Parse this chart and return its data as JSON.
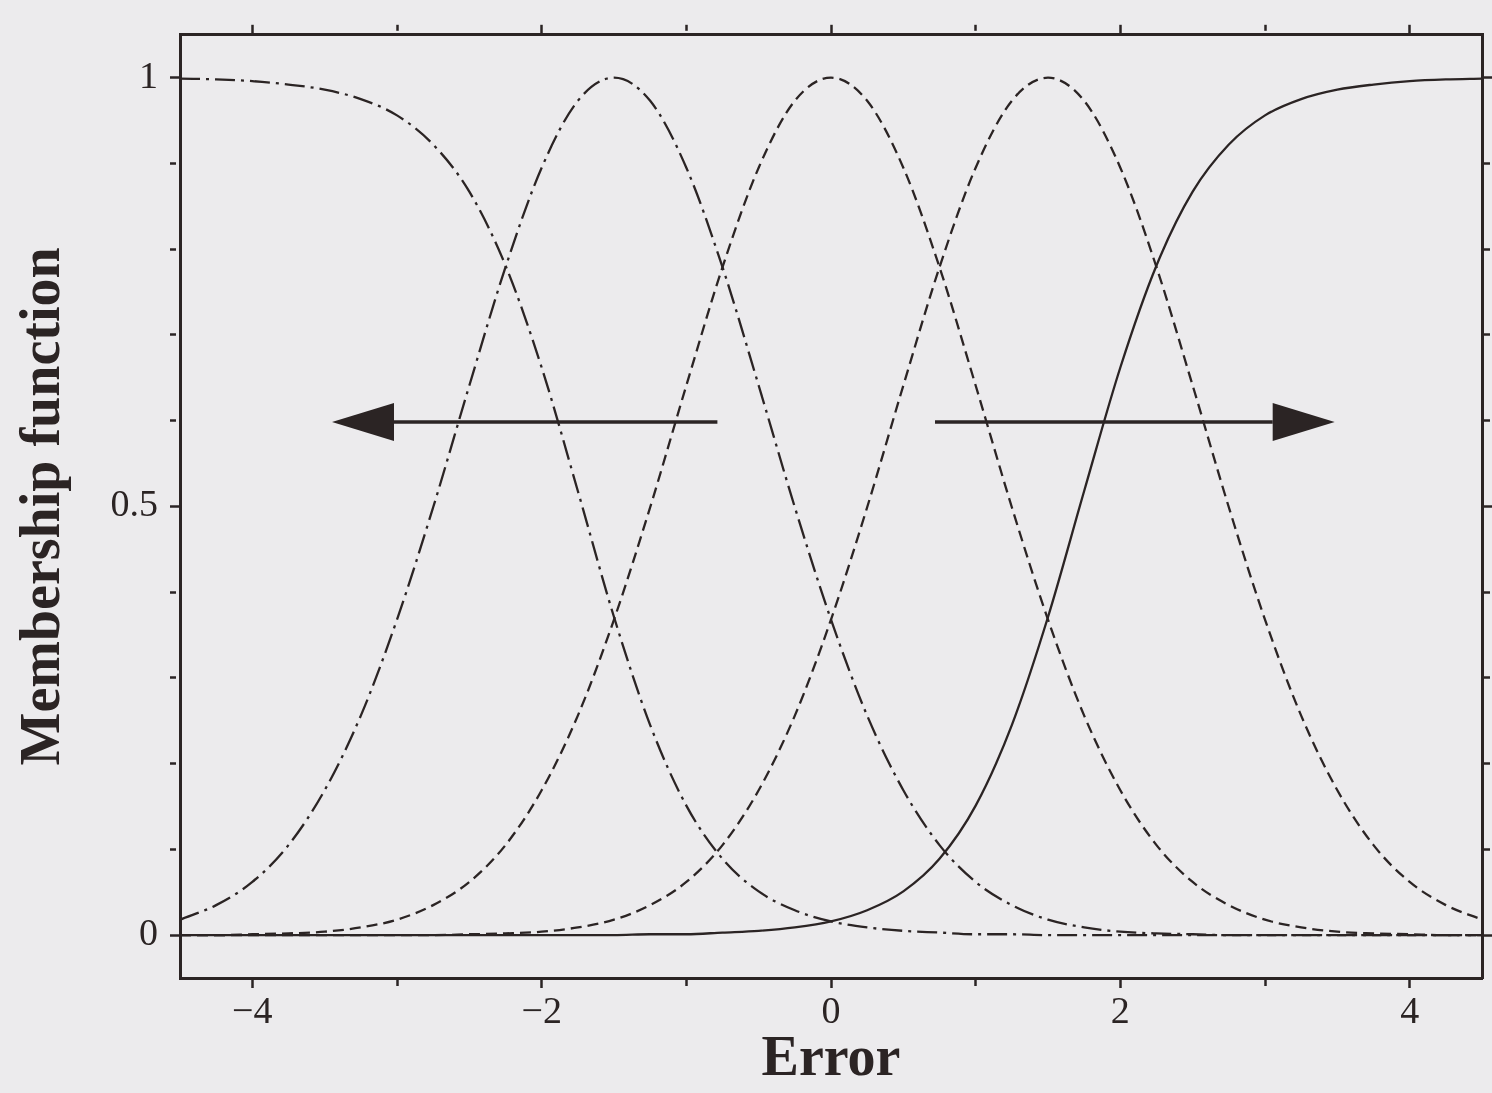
{
  "chart_data": {
    "type": "line",
    "xlabel": "Error",
    "ylabel": "Membership function",
    "x": [
      -4.5,
      -4.25,
      -4,
      -3.75,
      -3.5,
      -3.25,
      -3,
      -2.75,
      -2.5,
      -2.25,
      -2,
      -1.75,
      -1.5,
      -1.25,
      -1,
      -0.75,
      -0.5,
      -0.25,
      0,
      0.25,
      0.5,
      0.75,
      1,
      1.25,
      1.5,
      1.75,
      2,
      2.25,
      2.5,
      2.75,
      3,
      3.25,
      3.5,
      3.75,
      4,
      4.25,
      4.5
    ],
    "xlim": [
      -4.5,
      4.5
    ],
    "xticks": [
      {
        "value": -4,
        "label": "−4"
      },
      {
        "value": -3,
        "label": null
      },
      {
        "value": -2,
        "label": "−2"
      },
      {
        "value": -1,
        "label": null
      },
      0,
      {
        "value": 1,
        "label": null
      },
      2,
      {
        "value": 3,
        "label": null
      },
      4
    ],
    "ylim": [
      -0.05,
      1.05
    ],
    "yticks": [
      0,
      {
        "value": 0.1,
        "label": null
      },
      {
        "value": 0.2,
        "label": null
      },
      {
        "value": 0.3,
        "label": null
      },
      {
        "value": 0.4,
        "label": null
      },
      0.5,
      {
        "value": 0.6,
        "label": null
      },
      {
        "value": 0.7,
        "label": null
      },
      {
        "value": 0.8,
        "label": null
      },
      {
        "value": 0.9,
        "label": null
      },
      1
    ],
    "series": [
      {
        "color": "#2b2424",
        "line_style": "dashdot",
        "values": [
          0.999,
          0.998,
          0.996,
          0.992,
          0.986,
          0.975,
          0.956,
          0.922,
          0.867,
          0.781,
          0.662,
          0.518,
          0.371,
          0.245,
          0.151,
          0.089,
          0.051,
          0.029,
          0.016,
          0.009,
          0.005,
          0.003,
          0.001,
          0.001,
          0,
          0,
          0,
          0,
          0,
          0,
          0,
          0,
          0,
          0,
          0,
          0,
          0
        ]
      },
      {
        "color": "#2b2424",
        "line_style": "dashdot",
        "values": [
          0.018,
          0.035,
          0.062,
          0.105,
          0.169,
          0.256,
          0.368,
          0.499,
          0.641,
          0.779,
          0.895,
          0.973,
          1,
          0.973,
          0.895,
          0.779,
          0.641,
          0.499,
          0.368,
          0.256,
          0.169,
          0.105,
          0.062,
          0.035,
          0.018,
          0.009,
          0.004,
          0.002,
          0.001,
          0,
          0,
          0,
          0,
          0,
          0,
          0,
          0
        ]
      },
      {
        "color": "#2b2424",
        "line_style": "dashed",
        "values": [
          0,
          0,
          0.001,
          0.002,
          0.004,
          0.009,
          0.018,
          0.035,
          0.062,
          0.105,
          0.169,
          0.256,
          0.368,
          0.499,
          0.641,
          0.779,
          0.895,
          0.973,
          1,
          0.973,
          0.895,
          0.779,
          0.641,
          0.499,
          0.368,
          0.256,
          0.169,
          0.105,
          0.062,
          0.035,
          0.018,
          0.009,
          0.004,
          0.002,
          0.001,
          0,
          0
        ]
      },
      {
        "color": "#2b2424",
        "line_style": "dashed",
        "values": [
          0,
          0,
          0,
          0,
          0,
          0,
          0,
          0,
          0.001,
          0.002,
          0.004,
          0.009,
          0.018,
          0.035,
          0.062,
          0.105,
          0.169,
          0.256,
          0.368,
          0.499,
          0.641,
          0.779,
          0.895,
          0.973,
          1,
          0.973,
          0.895,
          0.779,
          0.641,
          0.499,
          0.368,
          0.256,
          0.169,
          0.105,
          0.062,
          0.035,
          0.018
        ]
      },
      {
        "color": "#2b2424",
        "line_style": "solid",
        "values": [
          0,
          0,
          0,
          0,
          0,
          0,
          0,
          0,
          0,
          0,
          0,
          0,
          0,
          0.001,
          0.001,
          0.003,
          0.005,
          0.009,
          0.016,
          0.029,
          0.051,
          0.089,
          0.151,
          0.245,
          0.371,
          0.518,
          0.662,
          0.781,
          0.867,
          0.922,
          0.956,
          0.975,
          0.986,
          0.992,
          0.996,
          0.998,
          0.999
        ]
      }
    ]
  }
}
